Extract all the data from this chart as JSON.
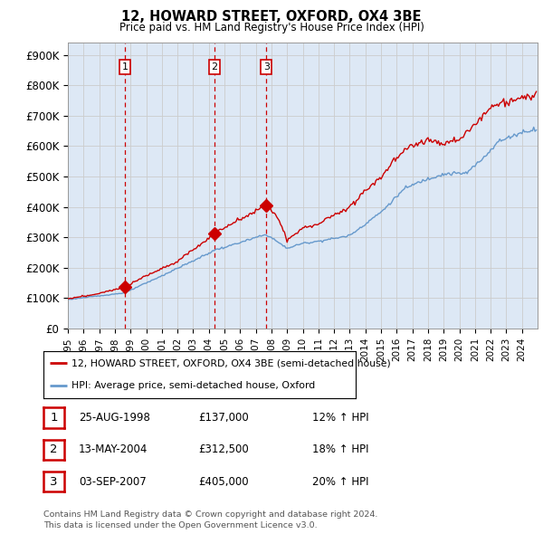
{
  "title": "12, HOWARD STREET, OXFORD, OX4 3BE",
  "subtitle": "Price paid vs. HM Land Registry's House Price Index (HPI)",
  "ylabel_ticks": [
    "£0",
    "£100K",
    "£200K",
    "£300K",
    "£400K",
    "£500K",
    "£600K",
    "£700K",
    "£800K",
    "£900K"
  ],
  "ytick_values": [
    0,
    100000,
    200000,
    300000,
    400000,
    500000,
    600000,
    700000,
    800000,
    900000
  ],
  "xlim_start": 1995.0,
  "xlim_end": 2025.0,
  "ylim": [
    0,
    940000
  ],
  "red_color": "#cc0000",
  "blue_color": "#6699cc",
  "chart_bg_color": "#dde8f5",
  "purchase_dates": [
    1998.65,
    2004.37,
    2007.67
  ],
  "purchase_prices": [
    137000,
    312500,
    405000
  ],
  "purchase_labels": [
    "1",
    "2",
    "3"
  ],
  "vline_color": "#cc0000",
  "legend_label_red": "12, HOWARD STREET, OXFORD, OX4 3BE (semi-detached house)",
  "legend_label_blue": "HPI: Average price, semi-detached house, Oxford",
  "table_data": [
    {
      "num": "1",
      "date": "25-AUG-1998",
      "price": "£137,000",
      "hpi": "12% ↑ HPI"
    },
    {
      "num": "2",
      "date": "13-MAY-2004",
      "price": "£312,500",
      "hpi": "18% ↑ HPI"
    },
    {
      "num": "3",
      "date": "03-SEP-2007",
      "price": "£405,000",
      "hpi": "20% ↑ HPI"
    }
  ],
  "footnote": "Contains HM Land Registry data © Crown copyright and database right 2024.\nThis data is licensed under the Open Government Licence v3.0.",
  "background_color": "#ffffff",
  "grid_color": "#cccccc"
}
